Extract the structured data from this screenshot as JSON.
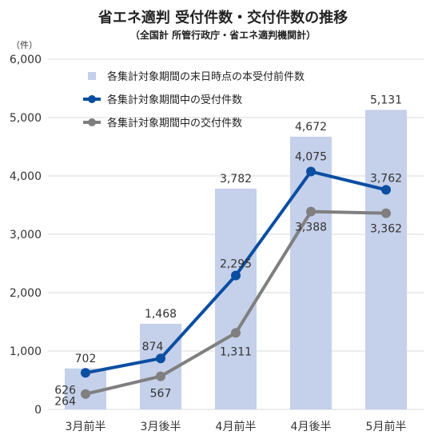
{
  "chart_data": {
    "type": "bar",
    "title": "省エネ適判 受付件数・交付件数の推移",
    "subtitle": "（全国計 所管行政庁・省エネ適判機関計）",
    "y_unit": "（件）",
    "categories": [
      "3月前半",
      "3月後半",
      "4月前半",
      "4月後半",
      "5月前半"
    ],
    "ylim": [
      0,
      6000
    ],
    "yticks": [
      "0",
      "1,000",
      "2,000",
      "3,000",
      "4,000",
      "5,000",
      "6,000"
    ],
    "grid": true,
    "legend_position": "top-left",
    "series": [
      {
        "name": "各集計対象期間の末日時点の本受付前件数",
        "type": "bar",
        "color": "#c5d0ea",
        "values": [
          702,
          1468,
          3782,
          4672,
          5131
        ],
        "labels": [
          "702",
          "1,468",
          "3,782",
          "4,672",
          "5,131"
        ]
      },
      {
        "name": "各集計対象期間中の受付件数",
        "type": "line",
        "color": "#0b4ea2",
        "values": [
          626,
          874,
          2295,
          4075,
          3762
        ],
        "labels": [
          "626",
          "874",
          "2,295",
          "4,075",
          "3,762"
        ]
      },
      {
        "name": "各集計対象期間中の交付件数",
        "type": "line",
        "color": "#7f7f7f",
        "values": [
          264,
          567,
          1311,
          3388,
          3362
        ],
        "labels": [
          "264",
          "567",
          "1,311",
          "3,388",
          "3,362"
        ]
      }
    ]
  }
}
